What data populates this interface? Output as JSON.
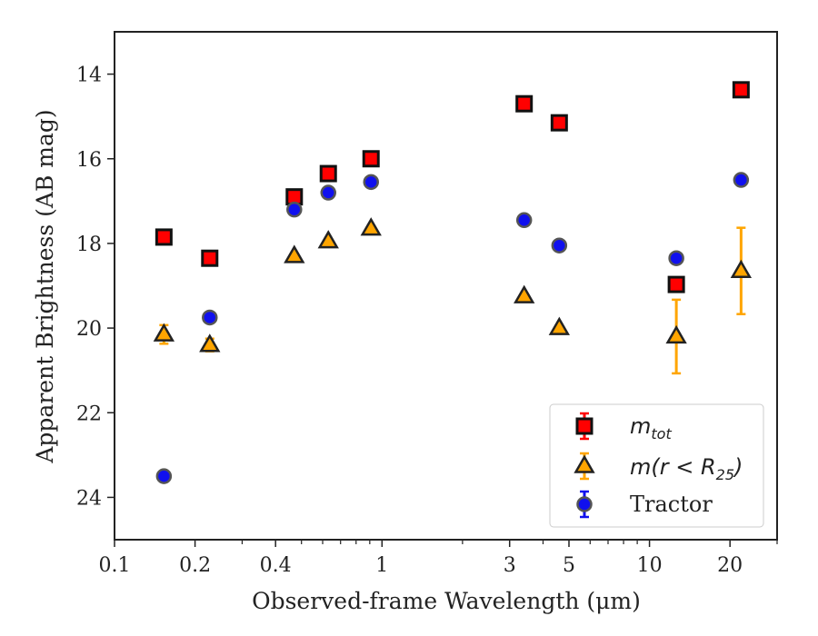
{
  "chart_data": {
    "type": "scatter",
    "title": "",
    "xlabel": "Observed-frame Wavelength (μm)",
    "ylabel": "Apparent Brightness (AB mag)",
    "xscale": "log",
    "xlim": [
      0.1,
      30
    ],
    "ylim": [
      25,
      13
    ],
    "y_inverted": true,
    "xticks": [
      {
        "value": 0.1,
        "label": "0.1"
      },
      {
        "value": 0.2,
        "label": "0.2"
      },
      {
        "value": 0.4,
        "label": "0.4"
      },
      {
        "value": 1,
        "label": "1"
      },
      {
        "value": 3,
        "label": "3"
      },
      {
        "value": 5,
        "label": "5"
      },
      {
        "value": 10,
        "label": "10"
      },
      {
        "value": 20,
        "label": "20"
      }
    ],
    "yticks": [
      {
        "value": 14,
        "label": "14"
      },
      {
        "value": 16,
        "label": "16"
      },
      {
        "value": 18,
        "label": "18"
      },
      {
        "value": 20,
        "label": "20"
      },
      {
        "value": 22,
        "label": "22"
      },
      {
        "value": 24,
        "label": "24"
      }
    ],
    "legend_position": "bottom-right",
    "series": [
      {
        "name": "m_tot",
        "label_main": "m",
        "label_sub": "tot",
        "marker": "square",
        "color": "#ff0000",
        "errcolor": "#ff0000",
        "x": [
          0.153,
          0.227,
          0.47,
          0.63,
          0.91,
          3.4,
          4.6,
          12.6,
          22.0
        ],
        "y": [
          17.85,
          18.35,
          16.9,
          16.35,
          16.0,
          14.7,
          15.15,
          18.97,
          14.37
        ],
        "yerr": [
          0.05,
          0.05,
          0.05,
          0.05,
          0.05,
          0.05,
          0.05,
          0.05,
          0.05
        ]
      },
      {
        "name": "m(r < R25)",
        "label_main": "m(r < R",
        "label_sub": "25",
        "label_tail": ")",
        "marker": "triangle",
        "color": "#ffa500",
        "errcolor": "#ffa500",
        "x": [
          0.153,
          0.227,
          0.47,
          0.63,
          0.91,
          3.4,
          4.6,
          12.6,
          22.0
        ],
        "y": [
          20.15,
          20.4,
          18.3,
          17.95,
          17.65,
          19.25,
          20.0,
          20.2,
          18.65
        ],
        "yerr": [
          0.22,
          0.15,
          0.05,
          0.05,
          0.05,
          0.05,
          0.05,
          0.87,
          1.02
        ]
      },
      {
        "name": "Tractor",
        "label_main": "Tractor",
        "marker": "circle",
        "color": "#1010ee",
        "errcolor": "#1010ee",
        "x": [
          0.153,
          0.227,
          0.47,
          0.63,
          0.91,
          3.4,
          4.6,
          12.6,
          22.0
        ],
        "y": [
          23.5,
          19.75,
          17.2,
          16.8,
          16.55,
          17.45,
          18.05,
          18.35,
          16.5
        ],
        "yerr": [
          0.08,
          0.08,
          0.08,
          0.08,
          0.08,
          0.08,
          0.08,
          0.08,
          0.08
        ]
      }
    ]
  }
}
